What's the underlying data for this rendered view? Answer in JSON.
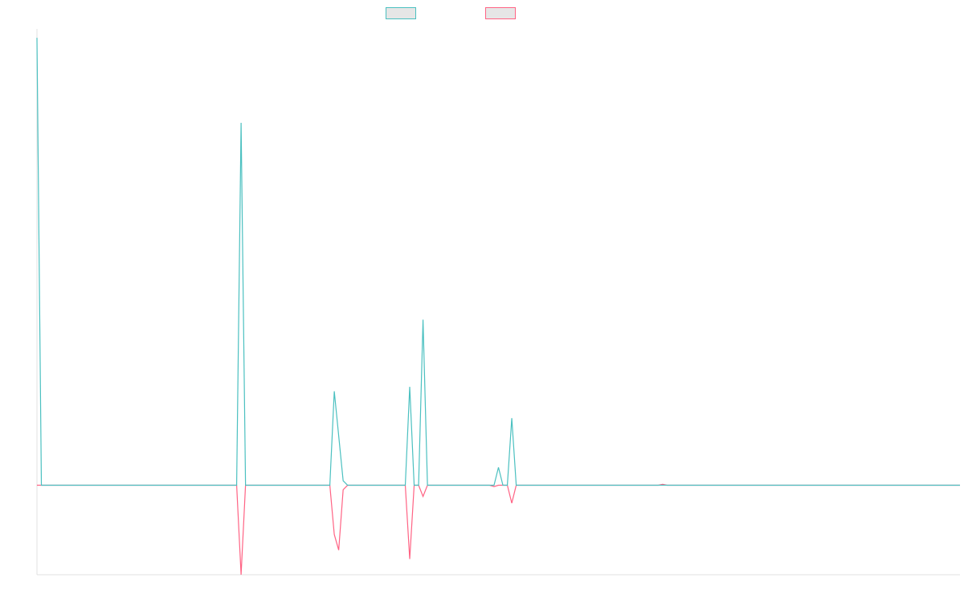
{
  "chart_data": {
    "type": "line",
    "title": "",
    "xlabel": "",
    "ylabel": "",
    "grid": false,
    "legend_placement": "top",
    "ylim": [
      -20,
      102
    ],
    "xlim": [
      0,
      208
    ],
    "series": [
      {
        "color": "#4bc0c0",
        "label": "",
        "points": [
          [
            0,
            100
          ],
          [
            1,
            0
          ],
          [
            45,
            0
          ],
          [
            46,
            81
          ],
          [
            47,
            0
          ],
          [
            66,
            0
          ],
          [
            67,
            21
          ],
          [
            69,
            1
          ],
          [
            70,
            0
          ],
          [
            83,
            0
          ],
          [
            84,
            22
          ],
          [
            85,
            0
          ],
          [
            86,
            0
          ],
          [
            87,
            37
          ],
          [
            88,
            0
          ],
          [
            103,
            0
          ],
          [
            104,
            4
          ],
          [
            105,
            0
          ],
          [
            106,
            0
          ],
          [
            107,
            15
          ],
          [
            108,
            0
          ],
          [
            208,
            0
          ]
        ]
      },
      {
        "color": "#ff6384",
        "label": "",
        "points": [
          [
            0,
            0
          ],
          [
            45,
            0
          ],
          [
            46,
            -20
          ],
          [
            47,
            0
          ],
          [
            66,
            0
          ],
          [
            67,
            -11
          ],
          [
            68,
            -14.5
          ],
          [
            69,
            -1
          ],
          [
            70,
            0
          ],
          [
            83,
            0
          ],
          [
            84,
            -16.5
          ],
          [
            85,
            0
          ],
          [
            86,
            0
          ],
          [
            87,
            -2.5
          ],
          [
            88,
            0
          ],
          [
            102,
            0
          ],
          [
            103,
            -0.3
          ],
          [
            104,
            0
          ],
          [
            106,
            0
          ],
          [
            107,
            -4
          ],
          [
            108,
            0
          ],
          [
            140,
            0
          ],
          [
            141,
            0.2
          ],
          [
            142,
            0
          ],
          [
            208,
            0
          ]
        ]
      }
    ]
  }
}
